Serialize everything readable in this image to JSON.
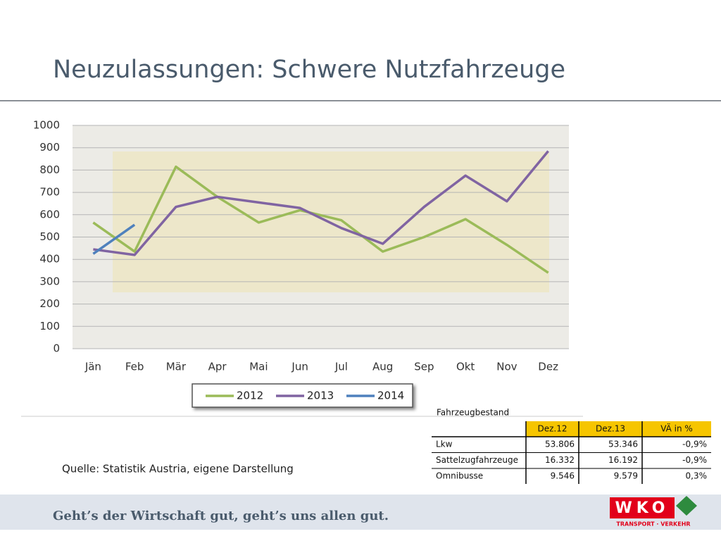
{
  "title": "Neuzulassungen: Schwere Nutzfahrzeuge",
  "chart_data": {
    "type": "line",
    "categories": [
      "Jän",
      "Feb",
      "Mär",
      "Apr",
      "Mai",
      "Jun",
      "Jul",
      "Aug",
      "Sep",
      "Okt",
      "Nov",
      "Dez"
    ],
    "series": [
      {
        "name": "2012",
        "color": "#9bbb59",
        "values": [
          565,
          435,
          815,
          680,
          565,
          620,
          575,
          435,
          500,
          580,
          465,
          340
        ]
      },
      {
        "name": "2013",
        "color": "#8064a2",
        "values": [
          445,
          420,
          635,
          680,
          655,
          630,
          540,
          470,
          635,
          775,
          660,
          885
        ]
      },
      {
        "name": "2014",
        "color": "#4f81bd",
        "values": [
          425,
          555,
          null,
          null,
          null,
          null,
          null,
          null,
          null,
          null,
          null,
          null
        ]
      }
    ],
    "ylim": [
      0,
      1000
    ],
    "yticks": [
      0,
      100,
      200,
      300,
      400,
      500,
      600,
      700,
      800,
      900,
      1000
    ],
    "grid": true,
    "legend": "bottom"
  },
  "source": "Quelle: Statistik Austria, eigene Darstellung",
  "table": {
    "title": "Fahrzeugbestand",
    "header": [
      "Dez.12",
      "Dez.13",
      "VÄ in %"
    ],
    "rows": [
      [
        "Lkw",
        "53.806",
        "53.346",
        "-0,9%"
      ],
      [
        "Sattelzugfahrzeuge",
        "16.332",
        "16.192",
        "-0,9%"
      ],
      [
        "Omnibusse",
        "9.546",
        "9.579",
        "0,3%"
      ]
    ]
  },
  "footer": {
    "slogan": "Geht’s der Wirtschaft gut, geht’s uns allen gut.",
    "logo": "WKO",
    "logo_sub": "TRANSPORT · VERKEHR"
  }
}
